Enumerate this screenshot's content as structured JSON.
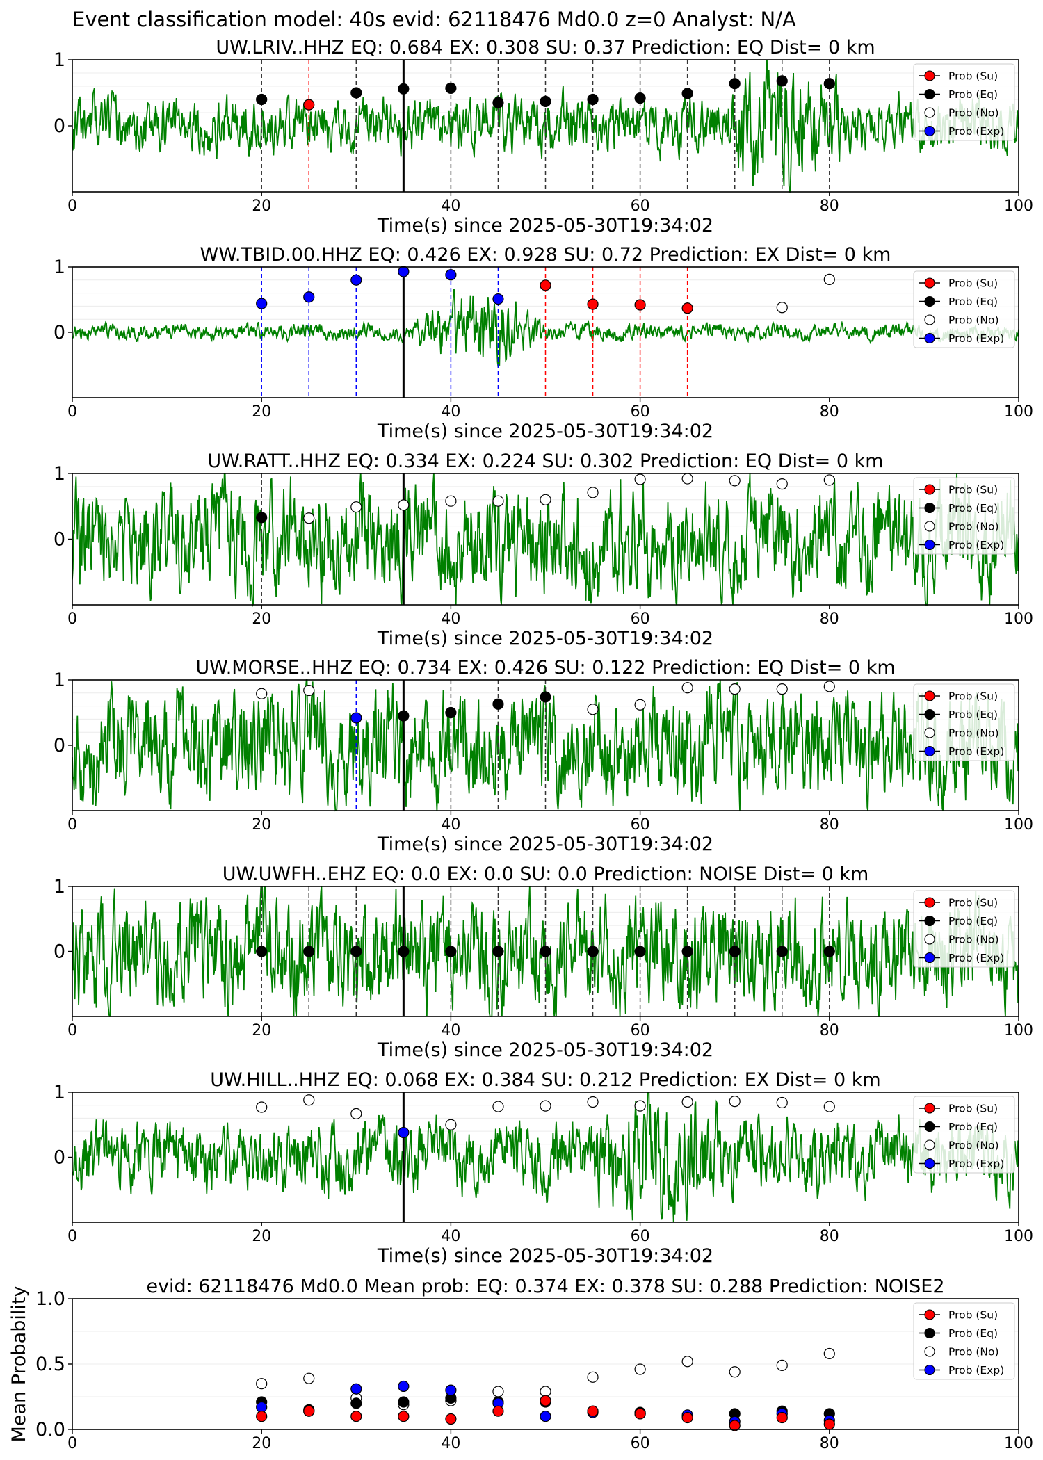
{
  "suptitle": "Event classification model: 40s evid: 62118476 Md0.0 z=0 Analyst: N/A",
  "xlabel": "Time(s) since 2025-05-30T19:34:02",
  "legend": {
    "position": "top-right",
    "entries": [
      {
        "label": "Prob (Su)",
        "marker": "red"
      },
      {
        "label": "Prob (Eq)",
        "marker": "black"
      },
      {
        "label": "Prob (No)",
        "marker": "white"
      },
      {
        "label": "Prob (Exp)",
        "marker": "blue"
      }
    ]
  },
  "colors": {
    "su": "#ff0000",
    "eq": "#000000",
    "no": "#ffffff",
    "exp": "#0000ff",
    "waveform": "#008000"
  },
  "chart_data": [
    {
      "type": "scatter",
      "title": "UW.LRIV..HHZ   EQ: 0.684  EX: 0.308  SU: 0.37   Prediction: EQ    Dist= 0 km",
      "xlim": [
        0,
        100
      ],
      "ylim": [
        -1,
        1
      ],
      "yticks": [
        0,
        1
      ],
      "xticks": [
        0,
        20,
        40,
        60,
        80,
        100
      ],
      "origin_line_x": 35,
      "waveform": {
        "amplitude": 0.42,
        "seed": 11,
        "burst_x": 75
      },
      "x": [
        20,
        25,
        30,
        35,
        40,
        45,
        50,
        55,
        60,
        65,
        70,
        75,
        80
      ],
      "predicted": [
        "eq",
        "su",
        "eq",
        "eq",
        "eq",
        "eq",
        "eq",
        "eq",
        "eq",
        "eq",
        "eq",
        "eq",
        "eq"
      ],
      "prob": [
        0.4,
        0.32,
        0.5,
        0.56,
        0.57,
        0.35,
        0.37,
        0.4,
        0.42,
        0.49,
        0.64,
        0.68,
        0.64
      ]
    },
    {
      "type": "scatter",
      "title": "WW.TBID.00.HHZ   EQ: 0.426  EX: 0.928  SU: 0.72   Prediction: EX    Dist= 0 km",
      "xlim": [
        0,
        100
      ],
      "ylim": [
        -1,
        1
      ],
      "yticks": [
        0,
        1
      ],
      "xticks": [
        0,
        20,
        40,
        60,
        80,
        100
      ],
      "origin_line_x": 35,
      "waveform": {
        "amplitude": 0.12,
        "seed": 23,
        "burst_x": 43
      },
      "x": [
        20,
        25,
        30,
        35,
        40,
        45,
        50,
        55,
        60,
        65,
        75,
        80
      ],
      "predicted": [
        "exp",
        "exp",
        "exp",
        "exp",
        "exp",
        "exp",
        "su",
        "su",
        "su",
        "su",
        "no",
        "no"
      ],
      "prob": [
        0.44,
        0.54,
        0.8,
        0.93,
        0.88,
        0.51,
        0.72,
        0.43,
        0.42,
        0.37,
        0.38,
        0.81
      ]
    },
    {
      "type": "scatter",
      "title": "UW.RATT..HHZ   EQ: 0.334  EX: 0.224  SU: 0.302   Prediction: EQ    Dist= 0 km",
      "xlim": [
        0,
        100
      ],
      "ylim": [
        -1,
        1
      ],
      "yticks": [
        0,
        1
      ],
      "xticks": [
        0,
        20,
        40,
        60,
        80,
        100
      ],
      "origin_line_x": 35,
      "waveform": {
        "amplitude": 0.85,
        "seed": 37,
        "burst_x": null
      },
      "x": [
        20,
        25,
        30,
        35,
        40,
        45,
        50,
        55,
        60,
        65,
        70,
        75,
        80
      ],
      "predicted": [
        "eq",
        "no",
        "no",
        "no",
        "no",
        "no",
        "no",
        "no",
        "no",
        "no",
        "no",
        "no",
        "no"
      ],
      "prob": [
        0.33,
        0.32,
        0.49,
        0.52,
        0.58,
        0.58,
        0.6,
        0.71,
        0.91,
        0.92,
        0.89,
        0.84,
        0.9
      ]
    },
    {
      "type": "scatter",
      "title": "UW.MORSE..HHZ   EQ: 0.734  EX: 0.426  SU: 0.122   Prediction: EQ    Dist= 0 km",
      "xlim": [
        0,
        100
      ],
      "ylim": [
        -1,
        1
      ],
      "yticks": [
        0,
        1
      ],
      "xticks": [
        0,
        20,
        40,
        60,
        80,
        100
      ],
      "origin_line_x": 35,
      "waveform": {
        "amplitude": 0.85,
        "seed": 41,
        "burst_x": null
      },
      "x": [
        20,
        25,
        30,
        35,
        40,
        45,
        50,
        55,
        60,
        65,
        70,
        75,
        80
      ],
      "predicted": [
        "no",
        "no",
        "exp",
        "eq",
        "eq",
        "eq",
        "eq",
        "no",
        "no",
        "no",
        "no",
        "no",
        "no"
      ],
      "prob": [
        0.79,
        0.84,
        0.42,
        0.45,
        0.5,
        0.63,
        0.74,
        0.55,
        0.62,
        0.88,
        0.86,
        0.86,
        0.9
      ]
    },
    {
      "type": "scatter",
      "title": "UW.UWFH..EHZ   EQ: 0.0  EX: 0.0  SU: 0.0   Prediction: NOISE    Dist= 0 km",
      "xlim": [
        0,
        100
      ],
      "ylim": [
        -1,
        1
      ],
      "yticks": [
        0,
        1
      ],
      "xticks": [
        0,
        20,
        40,
        60,
        80,
        100
      ],
      "origin_line_x": 35,
      "waveform": {
        "amplitude": 0.85,
        "seed": 53,
        "burst_x": null
      },
      "x": [
        20,
        25,
        30,
        35,
        40,
        45,
        50,
        55,
        60,
        65,
        70,
        75,
        80
      ],
      "predicted": [
        "eq",
        "eq",
        "eq",
        "eq",
        "eq",
        "eq",
        "eq",
        "eq",
        "eq",
        "eq",
        "eq",
        "eq",
        "eq"
      ],
      "prob": [
        0,
        0,
        0,
        0,
        0,
        0,
        0,
        0,
        0,
        0,
        0,
        0,
        0
      ]
    },
    {
      "type": "scatter",
      "title": "UW.HILL..HHZ   EQ: 0.068  EX: 0.384  SU: 0.212   Prediction: EX    Dist= 0 km",
      "xlim": [
        0,
        100
      ],
      "ylim": [
        -1,
        1
      ],
      "yticks": [
        0,
        1
      ],
      "xticks": [
        0,
        20,
        40,
        60,
        80,
        100
      ],
      "origin_line_x": 35,
      "waveform": {
        "amplitude": 0.55,
        "seed": 67,
        "burst_x": 62
      },
      "x": [
        20,
        25,
        30,
        35,
        40,
        45,
        50,
        55,
        60,
        65,
        70,
        75,
        80
      ],
      "predicted": [
        "no",
        "no",
        "no",
        "exp",
        "no",
        "no",
        "no",
        "no",
        "no",
        "no",
        "no",
        "no",
        "no"
      ],
      "prob": [
        0.77,
        0.88,
        0.67,
        0.38,
        0.5,
        0.78,
        0.79,
        0.85,
        0.79,
        0.85,
        0.86,
        0.84,
        0.78
      ]
    },
    {
      "type": "scatter",
      "title": "evid: 62118476  Md0.0   Mean prob:   EQ: 0.374  EX: 0.378  SU: 0.288   Prediction: NOISE2",
      "ylabel": "Mean Probability",
      "xlim": [
        0,
        100
      ],
      "ylim": [
        0,
        1
      ],
      "yticks": [
        0.0,
        0.5,
        1.0
      ],
      "xticks": [
        0,
        20,
        40,
        60,
        80,
        100
      ],
      "x": [
        20,
        25,
        30,
        35,
        40,
        45,
        50,
        55,
        60,
        65,
        70,
        75,
        80
      ],
      "series": [
        {
          "name": "Prob (No)",
          "key": "no",
          "values": [
            0.35,
            0.39,
            0.24,
            0.19,
            0.22,
            0.29,
            0.29,
            0.4,
            0.46,
            0.52,
            0.44,
            0.49,
            0.58
          ]
        },
        {
          "name": "Prob (Eq)",
          "key": "eq",
          "values": [
            0.21,
            0.15,
            0.2,
            0.21,
            0.24,
            0.21,
            0.21,
            0.14,
            0.13,
            0.1,
            0.12,
            0.14,
            0.12
          ]
        },
        {
          "name": "Prob (Exp)",
          "key": "exp",
          "values": [
            0.17,
            0.14,
            0.31,
            0.33,
            0.3,
            0.2,
            0.1,
            0.13,
            0.12,
            0.11,
            0.06,
            0.12,
            0.07
          ]
        },
        {
          "name": "Prob (Su)",
          "key": "su",
          "values": [
            0.1,
            0.14,
            0.1,
            0.1,
            0.08,
            0.14,
            0.22,
            0.14,
            0.12,
            0.09,
            0.03,
            0.09,
            0.04
          ]
        }
      ]
    }
  ]
}
